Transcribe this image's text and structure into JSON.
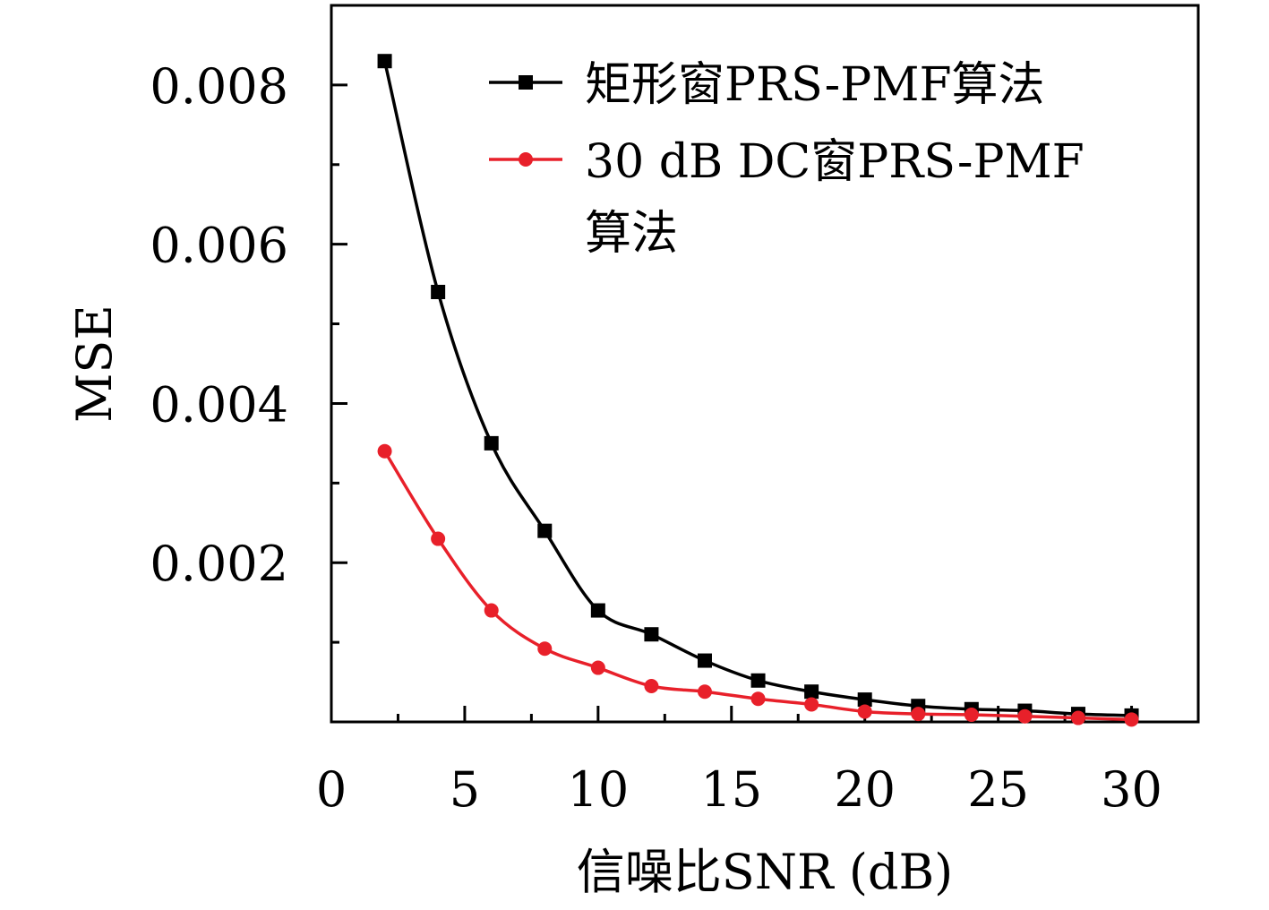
{
  "chart_data": {
    "type": "line",
    "title": "",
    "xlabel": "信噪比SNR (dB)",
    "ylabel": "MSE",
    "xlim": [
      0,
      32.5
    ],
    "ylim": [
      0,
      0.009
    ],
    "x_ticks": [
      0,
      5,
      10,
      15,
      20,
      25,
      30
    ],
    "x_tick_labels": [
      "0",
      "5",
      "10",
      "15",
      "20",
      "25",
      "30"
    ],
    "y_ticks": [
      0.002,
      0.004,
      0.006,
      0.008
    ],
    "y_tick_labels": [
      "0.002",
      "0.004",
      "0.006",
      "0.008"
    ],
    "grid": false,
    "legend_position": "top-right",
    "x": [
      2,
      4,
      6,
      8,
      10,
      12,
      14,
      16,
      18,
      20,
      22,
      24,
      26,
      28,
      30
    ],
    "series": [
      {
        "name": "矩形窗PRS-PMF算法",
        "legend_lines": [
          "矩形窗PRS-PMF算法"
        ],
        "color": "#000000",
        "marker": "square",
        "values": [
          0.0083,
          0.0054,
          0.0035,
          0.0024,
          0.0014,
          0.0011,
          0.00077,
          0.00052,
          0.00038,
          0.00028,
          0.0002,
          0.00016,
          0.00014,
          0.0001,
          8e-05
        ]
      },
      {
        "name": "30 dB DC窗PRS-PMF算法",
        "legend_lines": [
          "30 dB DC窗PRS-PMF",
          "算法"
        ],
        "color": "#e8202a",
        "marker": "circle",
        "values": [
          0.0034,
          0.0023,
          0.0014,
          0.00092,
          0.00068,
          0.00045,
          0.00038,
          0.00029,
          0.00022,
          0.00013,
          0.0001,
          9e-05,
          7e-05,
          5e-05,
          3e-05
        ]
      }
    ]
  }
}
